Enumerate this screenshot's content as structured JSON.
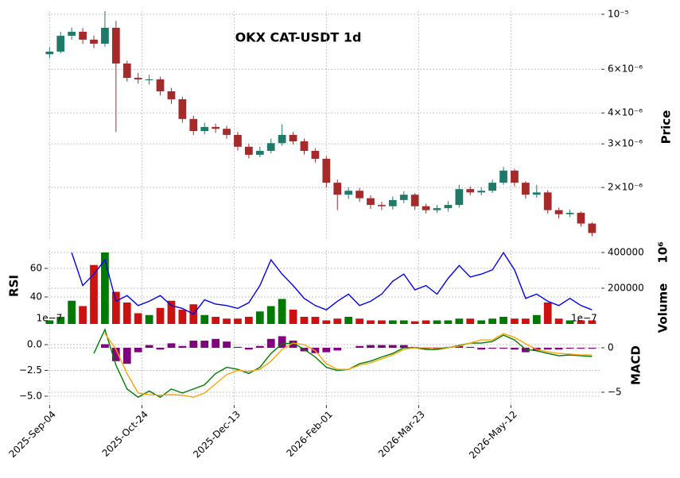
{
  "chart_data": [
    {
      "type": "candlestick",
      "title": "OKX CAT-USDT 1d",
      "ylabel": "Price",
      "y_axis_side": "right",
      "log_scale": true,
      "grid": true,
      "up_color": "#1f7a6a",
      "down_color": "#a52a2a",
      "xlim": [
        -1,
        299
      ],
      "xticks": [
        {
          "value": 0,
          "label": "2025-Sep-04"
        },
        {
          "value": 50,
          "label": "2025-Oct-24"
        },
        {
          "value": 100,
          "label": "2025-Dec-13"
        },
        {
          "value": 150,
          "label": "2026-Feb-01"
        },
        {
          "value": 200,
          "label": "2026-Mar-23"
        },
        {
          "value": 250,
          "label": "2026-May-12"
        }
      ],
      "ylim": [
        1.248e-06,
        1.03e-05
      ],
      "yticks": [
        {
          "value": 1e-05,
          "label": "10⁻⁵"
        },
        {
          "value": 6e-06,
          "label": "6×10⁻⁶"
        },
        {
          "value": 4e-06,
          "label": "4×10⁻⁶"
        },
        {
          "value": 3e-06,
          "label": "3×10⁻⁶"
        },
        {
          "value": 2e-06,
          "label": "2×10⁻⁶"
        }
      ],
      "x": [
        0,
        6,
        12,
        18,
        24,
        30,
        36,
        42,
        48,
        54,
        60,
        66,
        72,
        78,
        84,
        90,
        96,
        102,
        108,
        114,
        120,
        126,
        132,
        138,
        144,
        150,
        156,
        162,
        168,
        174,
        180,
        186,
        192,
        198,
        204,
        210,
        216,
        222,
        228,
        234,
        240,
        246,
        252,
        258,
        264,
        270,
        276,
        282,
        288,
        294
      ],
      "open": [
        6.9e-06,
        7.07e-06,
        8.19e-06,
        8.5e-06,
        7.9e-06,
        7.61e-06,
        8.82e-06,
        6.33e-06,
        5.54e-06,
        5.46e-06,
        5.46e-06,
        4.89e-06,
        4.54e-06,
        3.78e-06,
        3.38e-06,
        3.51e-06,
        3.45e-06,
        3.26e-06,
        2.92e-06,
        2.71e-06,
        2.81e-06,
        3.02e-06,
        3.26e-06,
        3.07e-06,
        2.81e-06,
        2.61e-06,
        2.09e-06,
        1.87e-06,
        1.94e-06,
        1.81e-06,
        1.7e-06,
        1.68e-06,
        1.78e-06,
        1.87e-06,
        1.68e-06,
        1.62e-06,
        1.65e-06,
        1.7e-06,
        1.97e-06,
        1.91e-06,
        1.94e-06,
        2.09e-06,
        2.34e-06,
        2.09e-06,
        1.87e-06,
        1.91e-06,
        1.62e-06,
        1.56e-06,
        1.58e-06,
        1.43e-06
      ],
      "high": [
        7.35e-06,
        8.5e-06,
        8.85e-06,
        8.8e-06,
        8.2e-06,
        1.03e-05,
        9.4e-06,
        6.5e-06,
        5.8e-06,
        5.7e-06,
        5.6e-06,
        5.05e-06,
        4.65e-06,
        3.9e-06,
        3.65e-06,
        3.62e-06,
        3.55e-06,
        3.35e-06,
        3e-06,
        2.92e-06,
        3.15e-06,
        3.6e-06,
        3.35e-06,
        3.15e-06,
        2.88e-06,
        2.68e-06,
        2.15e-06,
        2e-06,
        1.99e-06,
        1.86e-06,
        1.75e-06,
        1.84e-06,
        1.93e-06,
        1.9e-06,
        1.72e-06,
        1.7e-06,
        1.76e-06,
        2.05e-06,
        2.02e-06,
        2e-06,
        2.15e-06,
        2.42e-06,
        2.38e-06,
        2.12e-06,
        2.05e-06,
        1.95e-06,
        1.66e-06,
        1.63e-06,
        1.6e-06,
        1.45e-06
      ],
      "low": [
        6.65e-06,
        6.95e-06,
        7.9e-06,
        7.6e-06,
        7.3e-06,
        7.4e-06,
        3.35e-06,
        5.35e-06,
        5.25e-06,
        5.2e-06,
        4.7e-06,
        4.35e-06,
        3.65e-06,
        3.25e-06,
        3.28e-06,
        3.32e-06,
        3.15e-06,
        2.82e-06,
        2.62e-06,
        2.65e-06,
        2.75e-06,
        2.95e-06,
        2.98e-06,
        2.72e-06,
        2.52e-06,
        2e-06,
        1.62e-06,
        1.8e-06,
        1.75e-06,
        1.64e-06,
        1.62e-06,
        1.63e-06,
        1.73e-06,
        1.62e-06,
        1.57e-06,
        1.58e-06,
        1.6e-06,
        1.66e-06,
        1.86e-06,
        1.86e-06,
        1.9e-06,
        2.05e-06,
        2.02e-06,
        1.8e-06,
        1.82e-06,
        1.57e-06,
        1.5e-06,
        1.52e-06,
        1.39e-06,
        1.27e-06
      ],
      "close": [
        7.07e-06,
        8.19e-06,
        8.5e-06,
        7.9e-06,
        7.61e-06,
        8.82e-06,
        6.33e-06,
        5.54e-06,
        5.46e-06,
        5.46e-06,
        4.89e-06,
        4.54e-06,
        3.78e-06,
        3.38e-06,
        3.51e-06,
        3.45e-06,
        3.26e-06,
        2.92e-06,
        2.71e-06,
        2.81e-06,
        3.02e-06,
        3.26e-06,
        3.07e-06,
        2.81e-06,
        2.61e-06,
        2.09e-06,
        1.87e-06,
        1.94e-06,
        1.81e-06,
        1.7e-06,
        1.68e-06,
        1.78e-06,
        1.87e-06,
        1.68e-06,
        1.62e-06,
        1.65e-06,
        1.7e-06,
        1.97e-06,
        1.91e-06,
        1.94e-06,
        2.09e-06,
        2.34e-06,
        2.09e-06,
        1.87e-06,
        1.91e-06,
        1.62e-06,
        1.56e-06,
        1.58e-06,
        1.43e-06,
        1.31e-06
      ]
    },
    {
      "type": "bar",
      "ylabel": "RSI",
      "y_axis_side": "left",
      "grid": true,
      "ylim": [
        21.1,
        72.8
      ],
      "yticks": [
        60,
        40
      ],
      "y2label": "Volume",
      "y2_offset": "10⁶",
      "y2lim": [
        0,
        413333
      ],
      "y2ticks": [
        400000,
        200000
      ],
      "series": [
        {
          "type": "bar",
          "axis": "y2",
          "up_color": "#007a00",
          "down_color": "#cc1111",
          "values": [
            20000,
            40000,
            130000,
            100000,
            330000,
            400000,
            180000,
            120000,
            60000,
            50000,
            90000,
            130000,
            80000,
            110000,
            50000,
            40000,
            30000,
            30000,
            40000,
            70000,
            100000,
            140000,
            80000,
            40000,
            40000,
            20000,
            30000,
            40000,
            30000,
            20000,
            20000,
            20000,
            20000,
            15000,
            20000,
            20000,
            20000,
            30000,
            30000,
            20000,
            30000,
            40000,
            30000,
            30000,
            50000,
            120000,
            30000,
            20000,
            20000,
            20000
          ]
        },
        {
          "type": "line",
          "color": "#0000ee",
          "values": [
            null,
            null,
            71,
            48,
            56,
            66,
            37,
            41,
            34,
            37,
            41,
            34,
            32,
            28,
            38,
            35,
            34,
            32,
            36,
            48,
            66,
            56,
            48,
            39,
            34,
            31,
            37,
            42,
            34,
            37,
            42,
            51,
            56,
            45,
            48,
            42,
            53,
            62,
            54,
            56,
            59,
            71,
            59,
            39,
            42,
            37,
            34,
            39,
            34,
            31
          ]
        }
      ]
    },
    {
      "type": "line",
      "y_axis_side": "left",
      "grid": true,
      "ylim": [
        -5.85,
        1.85
      ],
      "yticks": [
        {
          "value": 0,
          "label": "0.0"
        },
        {
          "value": -2.5,
          "label": "−2.5"
        },
        {
          "value": -5,
          "label": "−5.0"
        }
      ],
      "y_offset": "1e−7",
      "y2label": "MACD",
      "y2lim": [
        -6.43,
        2.5
      ],
      "y2ticks": [
        0,
        {
          "value": -5,
          "label": "−5"
        }
      ],
      "y2_offset": "1e−7",
      "series": [
        {
          "type": "bar",
          "axis": "y2",
          "color": "#800080",
          "values": [
            null,
            null,
            null,
            null,
            null,
            0.4,
            -1.5,
            -1.8,
            -0.5,
            0.3,
            -0.2,
            0.5,
            0.2,
            0.8,
            0.8,
            1.0,
            0.7,
            0.1,
            -0.2,
            0.2,
            1.0,
            1.3,
            0.8,
            -0.4,
            -0.6,
            -0.5,
            -0.3,
            0,
            0.2,
            0.3,
            0.3,
            0.3,
            0.3,
            0.1,
            -0.1,
            -0.1,
            0.1,
            0.2,
            0.1,
            -0.2,
            -0.1,
            -0.1,
            -0.2,
            -0.5,
            -0.3,
            -0.2,
            -0.2,
            -0.1,
            -0.1,
            -0.1
          ]
        },
        {
          "type": "line",
          "color": "#007a00",
          "values": [
            null,
            null,
            null,
            null,
            -0.85,
            1.46,
            -2.0,
            -4.3,
            -5.1,
            -4.5,
            -5.1,
            -4.3,
            -4.7,
            -4.3,
            -3.9,
            -2.8,
            -2.2,
            -2.4,
            -2.8,
            -2.2,
            -0.85,
            0.08,
            0.15,
            -0.46,
            -1.2,
            -2.2,
            -2.5,
            -2.4,
            -1.85,
            -1.6,
            -1.2,
            -0.85,
            -0.3,
            -0.3,
            -0.46,
            -0.46,
            -0.3,
            -0.08,
            0.15,
            0.15,
            0.3,
            0.92,
            0.46,
            -0.46,
            -0.6,
            -0.85,
            -1.08,
            -1.0,
            -1.08,
            -1.15
          ]
        },
        {
          "type": "line",
          "color": "#ffa500",
          "values": [
            null,
            null,
            null,
            null,
            null,
            1.08,
            -0.46,
            -2.8,
            -4.7,
            -4.85,
            -4.9,
            -4.85,
            -4.9,
            -5.1,
            -4.7,
            -3.8,
            -2.9,
            -2.5,
            -2.6,
            -2.4,
            -1.6,
            -0.46,
            0.15,
            0,
            -0.6,
            -1.85,
            -2.4,
            -2.4,
            -2.0,
            -1.77,
            -1.38,
            -1.0,
            -0.46,
            -0.3,
            -0.3,
            -0.3,
            -0.3,
            -0.15,
            0.15,
            0.46,
            0.46,
            1.08,
            0.7,
            0.08,
            -0.46,
            -0.7,
            -0.85,
            -0.92,
            -1.0,
            -1.0
          ]
        }
      ]
    }
  ]
}
